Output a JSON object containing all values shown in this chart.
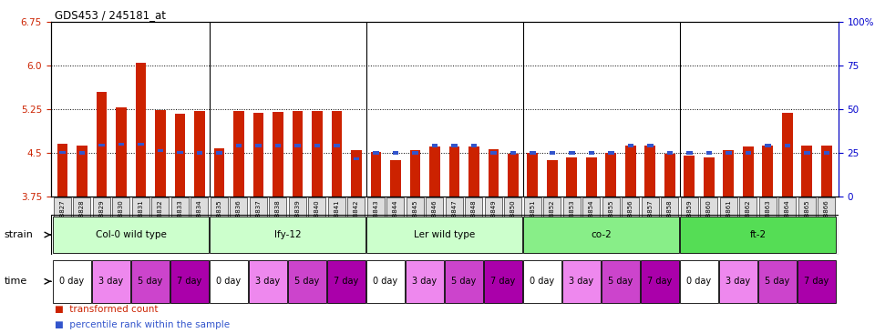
{
  "title": "GDS453 / 245181_at",
  "ylim_left": [
    3.75,
    6.75
  ],
  "ylim_right": [
    0,
    100
  ],
  "yticks_left": [
    3.75,
    4.5,
    5.25,
    6.0,
    6.75
  ],
  "yticks_right": [
    0,
    25,
    50,
    75,
    100
  ],
  "ytick_labels_right": [
    "0",
    "25",
    "50",
    "75",
    "100%"
  ],
  "hlines": [
    4.5,
    5.25,
    6.0
  ],
  "bar_color": "#cc2200",
  "blue_color": "#3355cc",
  "samples": [
    "GSM8827",
    "GSM8828",
    "GSM8829",
    "GSM8830",
    "GSM8831",
    "GSM8832",
    "GSM8833",
    "GSM8834",
    "GSM8835",
    "GSM8836",
    "GSM8837",
    "GSM8838",
    "GSM8839",
    "GSM8840",
    "GSM8841",
    "GSM8842",
    "GSM8843",
    "GSM8844",
    "GSM8845",
    "GSM8846",
    "GSM8847",
    "GSM8848",
    "GSM8849",
    "GSM8850",
    "GSM8851",
    "GSM8852",
    "GSM8853",
    "GSM8854",
    "GSM8855",
    "GSM8856",
    "GSM8857",
    "GSM8858",
    "GSM8859",
    "GSM8860",
    "GSM8861",
    "GSM8862",
    "GSM8863",
    "GSM8864",
    "GSM8865",
    "GSM8866"
  ],
  "red_values": [
    4.65,
    4.63,
    5.55,
    5.28,
    6.05,
    5.23,
    5.17,
    5.22,
    4.58,
    5.22,
    5.18,
    5.2,
    5.22,
    5.22,
    5.22,
    4.55,
    4.52,
    4.38,
    4.55,
    4.6,
    4.6,
    4.6,
    4.56,
    4.49,
    4.5,
    4.38,
    4.42,
    4.42,
    4.5,
    4.62,
    4.62,
    4.48,
    4.45,
    4.42,
    4.55,
    4.6,
    4.62,
    5.18,
    4.62,
    4.62
  ],
  "blue_values": [
    4.51,
    4.5,
    4.63,
    4.65,
    4.65,
    4.54,
    4.51,
    4.5,
    4.5,
    4.62,
    4.62,
    4.62,
    4.62,
    4.62,
    4.62,
    4.4,
    4.5,
    4.5,
    4.5,
    4.62,
    4.62,
    4.62,
    4.5,
    4.5,
    4.5,
    4.5,
    4.5,
    4.5,
    4.5,
    4.62,
    4.62,
    4.5,
    4.5,
    4.5,
    4.5,
    4.5,
    4.62,
    4.62,
    4.5,
    4.5
  ],
  "strains": [
    "Col-0 wild type",
    "lfy-12",
    "Ler wild type",
    "co-2",
    "ft-2"
  ],
  "strain_starts": [
    0,
    8,
    16,
    24,
    32
  ],
  "strain_ends": [
    8,
    16,
    24,
    32,
    40
  ],
  "strain_colors": [
    "#ccffcc",
    "#ccffcc",
    "#ccffcc",
    "#88ee88",
    "#55dd55"
  ],
  "time_labels": [
    "0 day",
    "3 day",
    "5 day",
    "7 day"
  ],
  "time_colors": [
    "#ffffff",
    "#ee88ee",
    "#cc44cc",
    "#aa00aa"
  ],
  "axis_color_left": "#cc2200",
  "axis_color_right": "#0000cc",
  "bar_width": 0.55,
  "xtick_bg": "#dddddd"
}
